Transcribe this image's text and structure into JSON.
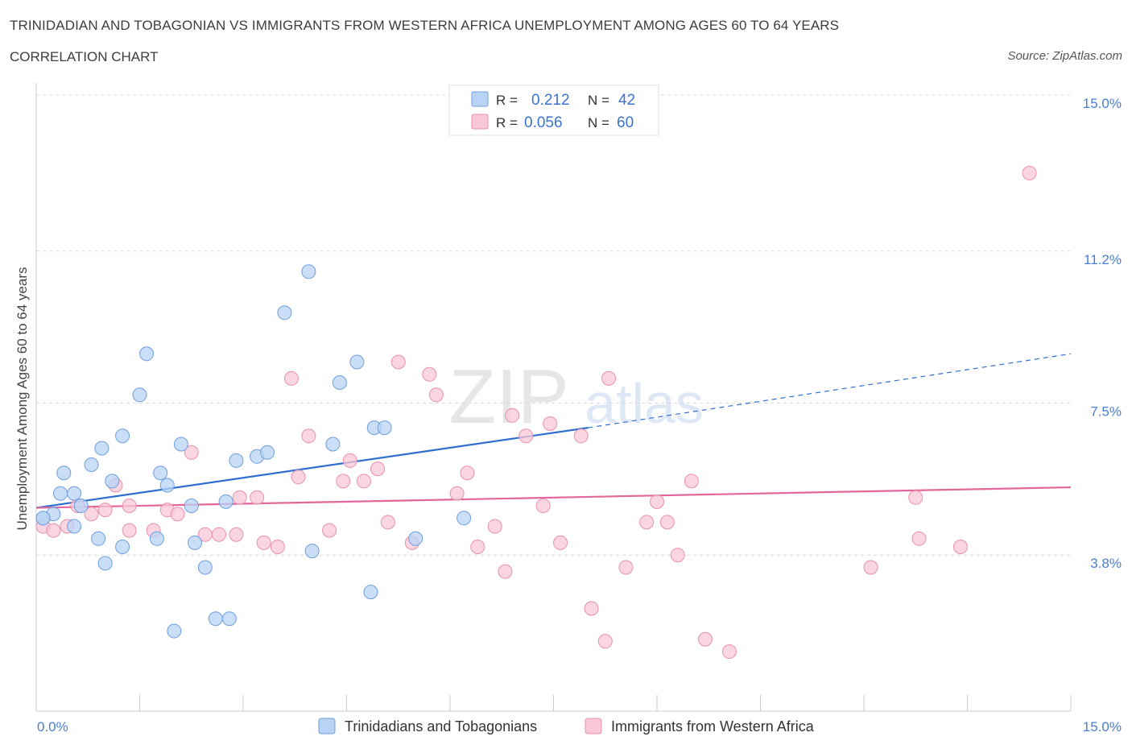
{
  "header": {
    "title": "TRINIDADIAN AND TOBAGONIAN VS IMMIGRANTS FROM WESTERN AFRICA UNEMPLOYMENT AMONG AGES 60 TO 64 YEARS",
    "subtitle": "CORRELATION CHART",
    "source": "Source: ZipAtlas.com"
  },
  "colors": {
    "blue_fill": "#b8d3f5",
    "blue_stroke": "#6e9fdd",
    "blue_line": "#2f6fd0",
    "pink_fill": "#f9c8d7",
    "pink_stroke": "#e890ae",
    "pink_line": "#e2679a",
    "axis_label": "#4a7fd0",
    "grid": "#d9d9d9"
  },
  "chart_data": {
    "type": "scatter",
    "title": "TRINIDADIAN AND TOBAGONIAN VS IMMIGRANTS FROM WESTERN AFRICA UNEMPLOYMENT AMONG AGES 60 TO 64 YEARS",
    "xlabel": "",
    "ylabel": "Unemployment Among Ages 60 to 64 years",
    "xlim": [
      0,
      15
    ],
    "ylim": [
      0,
      15
    ],
    "x_tick_labels": [
      "0.0%",
      "15.0%"
    ],
    "y_ticks": [
      3.8,
      7.5,
      11.2,
      15.0
    ],
    "y_tick_labels": [
      "3.8%",
      "7.5%",
      "11.2%",
      "15.0%"
    ],
    "watermark": {
      "zip": "ZIP",
      "atlas": "atlas"
    },
    "legend": {
      "r_label": "R =",
      "n_label": "N =",
      "entries": [
        {
          "r": "0.212",
          "n": "42"
        },
        {
          "r": "0.056",
          "n": "60"
        }
      ]
    },
    "series": [
      {
        "name": "Trinidadians and Tobagonians",
        "trend": {
          "x0": 0,
          "y0": 4.95,
          "x1": 8.0,
          "y1": 6.9,
          "dash_to_x": 15.0,
          "dash_to_y": 8.7
        },
        "points": [
          [
            0.1,
            4.7
          ],
          [
            0.25,
            4.8
          ],
          [
            0.4,
            5.8
          ],
          [
            0.35,
            5.3
          ],
          [
            0.55,
            5.3
          ],
          [
            0.65,
            5.0
          ],
          [
            0.55,
            4.5
          ],
          [
            0.8,
            6.0
          ],
          [
            0.95,
            6.4
          ],
          [
            1.1,
            5.6
          ],
          [
            0.9,
            4.2
          ],
          [
            1.25,
            6.7
          ],
          [
            1.0,
            3.6
          ],
          [
            1.25,
            4.0
          ],
          [
            1.5,
            7.7
          ],
          [
            1.6,
            8.7
          ],
          [
            1.75,
            4.2
          ],
          [
            1.8,
            5.8
          ],
          [
            1.9,
            5.5
          ],
          [
            2.1,
            6.5
          ],
          [
            2.25,
            5.0
          ],
          [
            2.3,
            4.1
          ],
          [
            2.45,
            3.5
          ],
          [
            2.6,
            2.25
          ],
          [
            2.8,
            2.25
          ],
          [
            2.75,
            5.1
          ],
          [
            2.9,
            6.1
          ],
          [
            3.2,
            6.2
          ],
          [
            3.35,
            6.3
          ],
          [
            2.0,
            1.95
          ],
          [
            3.6,
            9.7
          ],
          [
            3.95,
            10.7
          ],
          [
            4.0,
            3.9
          ],
          [
            4.3,
            6.5
          ],
          [
            4.4,
            8.0
          ],
          [
            4.65,
            8.5
          ],
          [
            4.9,
            6.9
          ],
          [
            5.05,
            6.9
          ],
          [
            4.85,
            2.9
          ],
          [
            5.5,
            4.2
          ],
          [
            6.2,
            4.7
          ],
          [
            0.1,
            4.7
          ]
        ]
      },
      {
        "name": "Immigrants from Western Africa",
        "trend": {
          "x0": 0,
          "y0": 4.95,
          "x1": 15.0,
          "y1": 5.45
        },
        "points": [
          [
            0.1,
            4.5
          ],
          [
            0.25,
            4.4
          ],
          [
            0.45,
            4.5
          ],
          [
            0.6,
            5.0
          ],
          [
            0.8,
            4.8
          ],
          [
            1.0,
            4.9
          ],
          [
            1.15,
            5.5
          ],
          [
            1.35,
            5.0
          ],
          [
            1.35,
            4.4
          ],
          [
            1.7,
            4.4
          ],
          [
            1.9,
            4.9
          ],
          [
            2.05,
            4.8
          ],
          [
            2.25,
            6.3
          ],
          [
            2.45,
            4.3
          ],
          [
            2.65,
            4.3
          ],
          [
            2.9,
            4.3
          ],
          [
            2.95,
            5.2
          ],
          [
            3.2,
            5.2
          ],
          [
            3.3,
            4.1
          ],
          [
            3.5,
            4.0
          ],
          [
            3.7,
            8.1
          ],
          [
            3.8,
            5.7
          ],
          [
            3.95,
            6.7
          ],
          [
            4.25,
            4.4
          ],
          [
            4.45,
            5.6
          ],
          [
            4.55,
            6.1
          ],
          [
            4.75,
            5.6
          ],
          [
            4.95,
            5.9
          ],
          [
            5.1,
            4.6
          ],
          [
            5.25,
            8.5
          ],
          [
            5.45,
            4.1
          ],
          [
            5.7,
            8.2
          ],
          [
            5.8,
            7.7
          ],
          [
            6.1,
            5.3
          ],
          [
            6.25,
            5.8
          ],
          [
            6.4,
            4.0
          ],
          [
            6.65,
            4.5
          ],
          [
            6.8,
            3.4
          ],
          [
            6.9,
            7.2
          ],
          [
            7.1,
            6.7
          ],
          [
            7.35,
            5.0
          ],
          [
            7.45,
            7.0
          ],
          [
            7.6,
            4.1
          ],
          [
            7.9,
            6.7
          ],
          [
            8.05,
            2.5
          ],
          [
            8.25,
            1.7
          ],
          [
            8.3,
            8.1
          ],
          [
            8.55,
            3.5
          ],
          [
            8.85,
            4.6
          ],
          [
            9.0,
            5.1
          ],
          [
            9.15,
            4.6
          ],
          [
            9.3,
            3.8
          ],
          [
            9.5,
            5.6
          ],
          [
            9.7,
            1.75
          ],
          [
            10.05,
            1.45
          ],
          [
            12.1,
            3.5
          ],
          [
            12.75,
            5.2
          ],
          [
            12.8,
            4.2
          ],
          [
            13.4,
            4.0
          ],
          [
            14.4,
            13.1
          ]
        ]
      }
    ]
  },
  "bottom_legend": [
    {
      "label": "Trinidadians and Tobagonians"
    },
    {
      "label": "Immigrants from Western Africa"
    }
  ]
}
